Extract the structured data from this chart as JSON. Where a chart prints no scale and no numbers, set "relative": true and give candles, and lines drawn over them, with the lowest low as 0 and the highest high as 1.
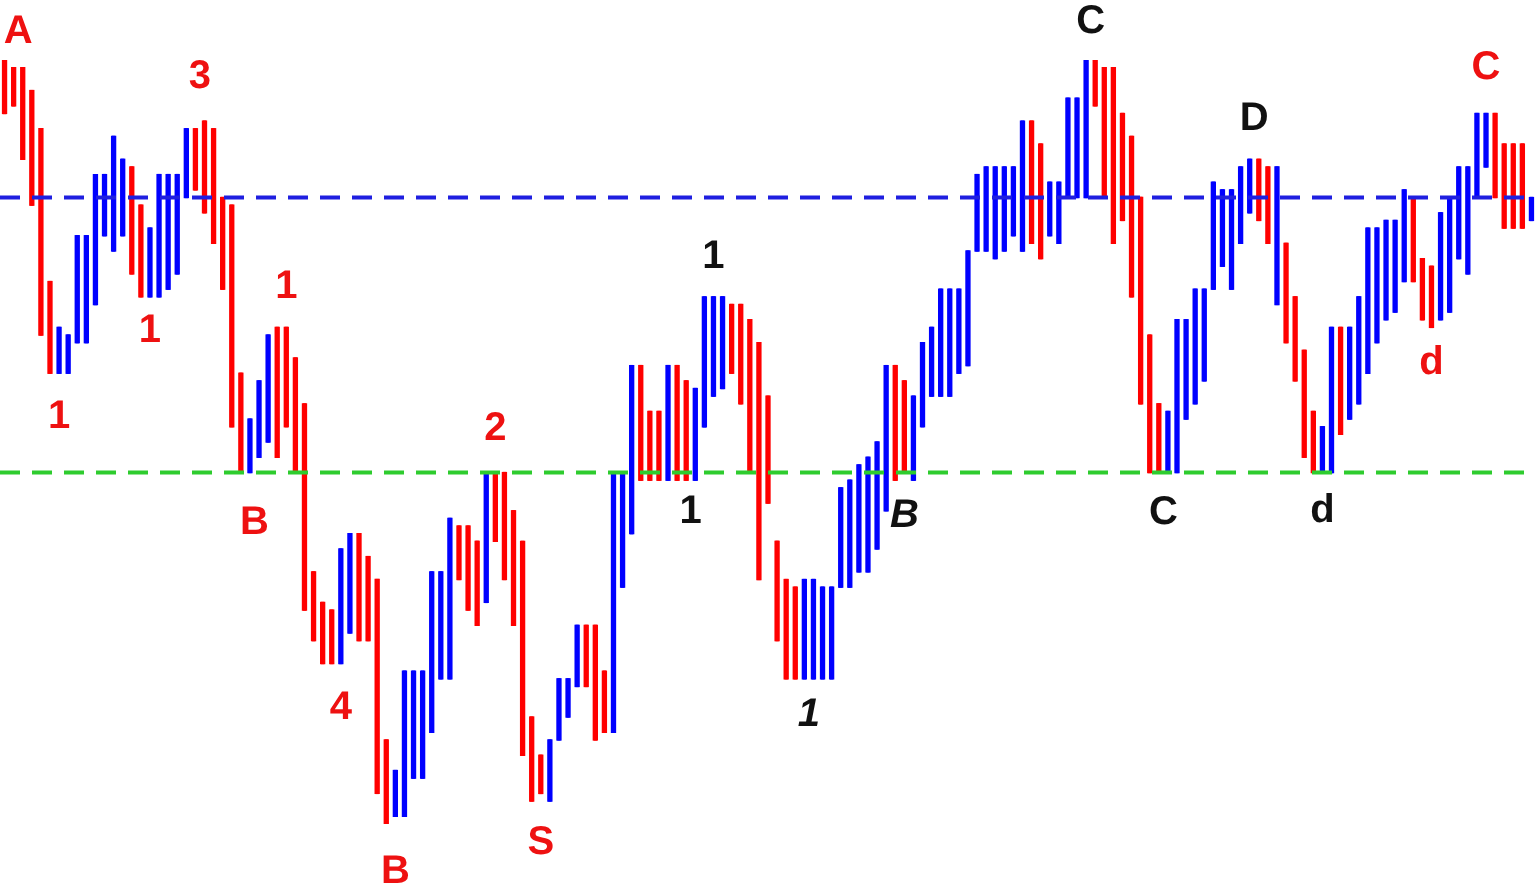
{
  "chart_data": {
    "type": "candlestick",
    "relative": true,
    "tick_labels": false,
    "categories": [
      null,
      null,
      null,
      null,
      null,
      null,
      null,
      null,
      null,
      null,
      null,
      null,
      null,
      null,
      null,
      null,
      null,
      null,
      null,
      null,
      null,
      null,
      null,
      null,
      null,
      null,
      null,
      null,
      null,
      null,
      null,
      null,
      null,
      null,
      null,
      null,
      null,
      null,
      null,
      null,
      null,
      null,
      null,
      null,
      null,
      null,
      null,
      null,
      null,
      null,
      null,
      null,
      null,
      null,
      null,
      null,
      null,
      null,
      null,
      null,
      null,
      null,
      null,
      null,
      null,
      null,
      null,
      null,
      null,
      null,
      null,
      null,
      null,
      null,
      null,
      null,
      null,
      null,
      null,
      null,
      null,
      null,
      null,
      null,
      null,
      null,
      null,
      null,
      null,
      null,
      null,
      null,
      null,
      null,
      null,
      null,
      null,
      null,
      null,
      null,
      null,
      null,
      null,
      null,
      null,
      null,
      null,
      null,
      null,
      null,
      null,
      null,
      null,
      null,
      null,
      null,
      null,
      null,
      null,
      null,
      null,
      null,
      null,
      null,
      null,
      null,
      null,
      null,
      null,
      null,
      null,
      null,
      null,
      null,
      null,
      null,
      null,
      null,
      null,
      null,
      null,
      null,
      null,
      null,
      null,
      null,
      null,
      null,
      null,
      null,
      null,
      null,
      null,
      null,
      null,
      null,
      null,
      null,
      null,
      null,
      null,
      null,
      null,
      null,
      null,
      null,
      null,
      null,
      null
    ],
    "ohlc": [
      [
        1,
        1,
        0.93,
        0.93
      ],
      [
        0.99,
        0.99,
        0.94,
        0.94
      ],
      [
        0.99,
        0.99,
        0.87,
        0.87
      ],
      [
        0.96,
        0.96,
        0.81,
        0.81
      ],
      [
        0.91,
        0.91,
        0.64,
        0.64
      ],
      [
        0.71,
        0.71,
        0.59,
        0.59
      ],
      [
        0.59,
        0.65,
        0.59,
        0.65
      ],
      [
        0.59,
        0.64,
        0.59,
        0.64
      ],
      [
        0.63,
        0.77,
        0.63,
        0.77
      ],
      [
        0.63,
        0.77,
        0.63,
        0.77
      ],
      [
        0.68,
        0.85,
        0.68,
        0.85
      ],
      [
        0.77,
        0.85,
        0.77,
        0.85
      ],
      [
        0.75,
        0.9,
        0.75,
        0.9
      ],
      [
        0.77,
        0.87,
        0.77,
        0.87
      ],
      [
        0.86,
        0.86,
        0.72,
        0.72
      ],
      [
        0.81,
        0.81,
        0.69,
        0.69
      ],
      [
        0.69,
        0.78,
        0.69,
        0.78
      ],
      [
        0.69,
        0.85,
        0.69,
        0.85
      ],
      [
        0.7,
        0.85,
        0.7,
        0.85
      ],
      [
        0.72,
        0.85,
        0.72,
        0.85
      ],
      [
        0.82,
        0.91,
        0.82,
        0.91
      ],
      [
        0.91,
        0.91,
        0.83,
        0.83
      ],
      [
        0.92,
        0.92,
        0.8,
        0.8
      ],
      [
        0.91,
        0.91,
        0.76,
        0.76
      ],
      [
        0.82,
        0.82,
        0.7,
        0.7
      ],
      [
        0.81,
        0.81,
        0.52,
        0.52
      ],
      [
        0.59,
        0.59,
        0.46,
        0.46
      ],
      [
        0.46,
        0.53,
        0.46,
        0.53
      ],
      [
        0.48,
        0.58,
        0.48,
        0.58
      ],
      [
        0.5,
        0.64,
        0.5,
        0.64
      ],
      [
        0.65,
        0.65,
        0.48,
        0.48
      ],
      [
        0.65,
        0.65,
        0.52,
        0.52
      ],
      [
        0.61,
        0.61,
        0.46,
        0.46
      ],
      [
        0.55,
        0.55,
        0.28,
        0.28
      ],
      [
        0.33,
        0.33,
        0.24,
        0.24
      ],
      [
        0.29,
        0.29,
        0.21,
        0.21
      ],
      [
        0.28,
        0.28,
        0.21,
        0.21
      ],
      [
        0.21,
        0.36,
        0.21,
        0.36
      ],
      [
        0.25,
        0.38,
        0.25,
        0.38
      ],
      [
        0.38,
        0.38,
        0.24,
        0.24
      ],
      [
        0.35,
        0.35,
        0.24,
        0.24
      ],
      [
        0.32,
        0.32,
        0.04,
        0.04
      ],
      [
        0.11,
        0.11,
        0,
        0
      ],
      [
        0.01,
        0.07,
        0.01,
        0.07
      ],
      [
        0.01,
        0.2,
        0.01,
        0.2
      ],
      [
        0.06,
        0.2,
        0.06,
        0.2
      ],
      [
        0.06,
        0.2,
        0.06,
        0.2
      ],
      [
        0.12,
        0.33,
        0.12,
        0.33
      ],
      [
        0.19,
        0.33,
        0.19,
        0.33
      ],
      [
        0.19,
        0.4,
        0.19,
        0.4
      ],
      [
        0.39,
        0.39,
        0.32,
        0.32
      ],
      [
        0.39,
        0.39,
        0.28,
        0.28
      ],
      [
        0.37,
        0.37,
        0.26,
        0.26
      ],
      [
        0.29,
        0.46,
        0.29,
        0.46
      ],
      [
        0.46,
        0.46,
        0.37,
        0.37
      ],
      [
        0.46,
        0.46,
        0.32,
        0.32
      ],
      [
        0.41,
        0.41,
        0.26,
        0.26
      ],
      [
        0.37,
        0.37,
        0.09,
        0.09
      ],
      [
        0.14,
        0.14,
        0.03,
        0.03
      ],
      [
        0.09,
        0.09,
        0.04,
        0.04
      ],
      [
        0.03,
        0.11,
        0.03,
        0.11
      ],
      [
        0.11,
        0.19,
        0.11,
        0.19
      ],
      [
        0.14,
        0.19,
        0.14,
        0.19
      ],
      [
        0.18,
        0.26,
        0.18,
        0.26
      ],
      [
        0.26,
        0.26,
        0.18,
        0.18
      ],
      [
        0.26,
        0.26,
        0.11,
        0.11
      ],
      [
        0.2,
        0.2,
        0.12,
        0.12
      ],
      [
        0.12,
        0.46,
        0.12,
        0.46
      ],
      [
        0.31,
        0.46,
        0.31,
        0.46
      ],
      [
        0.38,
        0.6,
        0.38,
        0.6
      ],
      [
        0.6,
        0.6,
        0.45,
        0.45
      ],
      [
        0.54,
        0.54,
        0.45,
        0.45
      ],
      [
        0.54,
        0.54,
        0.45,
        0.45
      ],
      [
        0.45,
        0.6,
        0.45,
        0.6
      ],
      [
        0.6,
        0.6,
        0.45,
        0.45
      ],
      [
        0.58,
        0.58,
        0.45,
        0.45
      ],
      [
        0.45,
        0.57,
        0.45,
        0.57
      ],
      [
        0.52,
        0.69,
        0.52,
        0.69
      ],
      [
        0.56,
        0.69,
        0.56,
        0.69
      ],
      [
        0.57,
        0.69,
        0.57,
        0.69
      ],
      [
        0.68,
        0.68,
        0.59,
        0.59
      ],
      [
        0.68,
        0.68,
        0.55,
        0.55
      ],
      [
        0.66,
        0.66,
        0.46,
        0.46
      ],
      [
        0.63,
        0.63,
        0.32,
        0.32
      ],
      [
        0.56,
        0.56,
        0.42,
        0.42
      ],
      [
        0.37,
        0.37,
        0.24,
        0.24
      ],
      [
        0.32,
        0.32,
        0.19,
        0.19
      ],
      [
        0.31,
        0.31,
        0.19,
        0.19
      ],
      [
        0.19,
        0.32,
        0.19,
        0.32
      ],
      [
        0.19,
        0.32,
        0.19,
        0.32
      ],
      [
        0.19,
        0.31,
        0.19,
        0.31
      ],
      [
        0.19,
        0.31,
        0.19,
        0.31
      ],
      [
        0.31,
        0.44,
        0.31,
        0.44
      ],
      [
        0.31,
        0.45,
        0.31,
        0.45
      ],
      [
        0.33,
        0.47,
        0.33,
        0.47
      ],
      [
        0.33,
        0.48,
        0.33,
        0.48
      ],
      [
        0.36,
        0.5,
        0.36,
        0.5
      ],
      [
        0.41,
        0.6,
        0.41,
        0.6
      ],
      [
        0.6,
        0.6,
        0.45,
        0.45
      ],
      [
        0.58,
        0.58,
        0.46,
        0.46
      ],
      [
        0.45,
        0.56,
        0.45,
        0.56
      ],
      [
        0.52,
        0.63,
        0.52,
        0.63
      ],
      [
        0.56,
        0.65,
        0.56,
        0.65
      ],
      [
        0.56,
        0.7,
        0.56,
        0.7
      ],
      [
        0.56,
        0.7,
        0.56,
        0.7
      ],
      [
        0.59,
        0.7,
        0.59,
        0.7
      ],
      [
        0.6,
        0.75,
        0.6,
        0.75
      ],
      [
        0.75,
        0.85,
        0.75,
        0.85
      ],
      [
        0.75,
        0.86,
        0.75,
        0.86
      ],
      [
        0.74,
        0.86,
        0.74,
        0.86
      ],
      [
        0.75,
        0.86,
        0.75,
        0.86
      ],
      [
        0.77,
        0.86,
        0.77,
        0.86
      ],
      [
        0.75,
        0.92,
        0.75,
        0.92
      ],
      [
        0.92,
        0.92,
        0.76,
        0.76
      ],
      [
        0.89,
        0.89,
        0.74,
        0.74
      ],
      [
        0.77,
        0.84,
        0.77,
        0.84
      ],
      [
        0.76,
        0.84,
        0.76,
        0.84
      ],
      [
        0.82,
        0.95,
        0.82,
        0.95
      ],
      [
        0.82,
        0.95,
        0.82,
        0.95
      ],
      [
        0.82,
        1,
        0.82,
        1
      ],
      [
        1,
        1,
        0.94,
        0.94
      ],
      [
        0.99,
        0.99,
        0.82,
        0.82
      ],
      [
        0.99,
        0.99,
        0.76,
        0.76
      ],
      [
        0.93,
        0.93,
        0.79,
        0.79
      ],
      [
        0.9,
        0.9,
        0.69,
        0.69
      ],
      [
        0.82,
        0.82,
        0.55,
        0.55
      ],
      [
        0.64,
        0.64,
        0.46,
        0.46
      ],
      [
        0.55,
        0.55,
        0.46,
        0.46
      ],
      [
        0.46,
        0.54,
        0.46,
        0.54
      ],
      [
        0.46,
        0.66,
        0.46,
        0.66
      ],
      [
        0.53,
        0.66,
        0.53,
        0.66
      ],
      [
        0.55,
        0.7,
        0.55,
        0.7
      ],
      [
        0.58,
        0.7,
        0.58,
        0.7
      ],
      [
        0.7,
        0.84,
        0.7,
        0.84
      ],
      [
        0.73,
        0.83,
        0.73,
        0.83
      ],
      [
        0.7,
        0.83,
        0.7,
        0.83
      ],
      [
        0.76,
        0.86,
        0.76,
        0.86
      ],
      [
        0.8,
        0.87,
        0.8,
        0.87
      ],
      [
        0.87,
        0.87,
        0.79,
        0.79
      ],
      [
        0.86,
        0.86,
        0.76,
        0.76
      ],
      [
        0.68,
        0.86,
        0.68,
        0.86
      ],
      [
        0.76,
        0.76,
        0.63,
        0.63
      ],
      [
        0.69,
        0.69,
        0.58,
        0.58
      ],
      [
        0.62,
        0.62,
        0.48,
        0.48
      ],
      [
        0.54,
        0.54,
        0.46,
        0.46
      ],
      [
        0.46,
        0.52,
        0.46,
        0.52
      ],
      [
        0.46,
        0.65,
        0.46,
        0.65
      ],
      [
        0.65,
        0.65,
        0.51,
        0.51
      ],
      [
        0.53,
        0.65,
        0.53,
        0.65
      ],
      [
        0.55,
        0.69,
        0.55,
        0.69
      ],
      [
        0.59,
        0.78,
        0.59,
        0.78
      ],
      [
        0.63,
        0.78,
        0.63,
        0.78
      ],
      [
        0.66,
        0.79,
        0.66,
        0.79
      ],
      [
        0.67,
        0.79,
        0.67,
        0.79
      ],
      [
        0.71,
        0.83,
        0.71,
        0.83
      ],
      [
        0.82,
        0.82,
        0.71,
        0.71
      ],
      [
        0.74,
        0.74,
        0.66,
        0.66
      ],
      [
        0.73,
        0.73,
        0.65,
        0.65
      ],
      [
        0.66,
        0.8,
        0.66,
        0.8
      ],
      [
        0.67,
        0.82,
        0.67,
        0.82
      ],
      [
        0.74,
        0.86,
        0.74,
        0.86
      ],
      [
        0.72,
        0.86,
        0.72,
        0.86
      ],
      [
        0.82,
        0.93,
        0.82,
        0.93
      ],
      [
        0.86,
        0.93,
        0.86,
        0.93
      ],
      [
        0.93,
        0.93,
        0.82,
        0.82
      ],
      [
        0.89,
        0.89,
        0.78,
        0.78
      ],
      [
        0.89,
        0.89,
        0.78,
        0.78
      ],
      [
        0.89,
        0.89,
        0.78,
        0.78
      ],
      [
        0.79,
        0.82,
        0.79,
        0.82
      ]
    ],
    "colors": [
      "#ff0000",
      "#ff0000",
      "#ff0000",
      "#ff0000",
      "#ff0000",
      "#ff0000",
      "#0000ff",
      "#0000ff",
      "#0000ff",
      "#0000ff",
      "#0000ff",
      "#0000ff",
      "#0000ff",
      "#0000ff",
      "#ff0000",
      "#ff0000",
      "#0000ff",
      "#0000ff",
      "#0000ff",
      "#0000ff",
      "#0000ff",
      "#ff0000",
      "#ff0000",
      "#ff0000",
      "#ff0000",
      "#ff0000",
      "#ff0000",
      "#0000ff",
      "#0000ff",
      "#0000ff",
      "#ff0000",
      "#ff0000",
      "#ff0000",
      "#ff0000",
      "#ff0000",
      "#ff0000",
      "#ff0000",
      "#0000ff",
      "#0000ff",
      "#ff0000",
      "#ff0000",
      "#ff0000",
      "#ff0000",
      "#0000ff",
      "#0000ff",
      "#0000ff",
      "#0000ff",
      "#0000ff",
      "#0000ff",
      "#0000ff",
      "#ff0000",
      "#ff0000",
      "#ff0000",
      "#0000ff",
      "#ff0000",
      "#ff0000",
      "#ff0000",
      "#ff0000",
      "#ff0000",
      "#ff0000",
      "#0000ff",
      "#0000ff",
      "#0000ff",
      "#0000ff",
      "#ff0000",
      "#ff0000",
      "#ff0000",
      "#0000ff",
      "#0000ff",
      "#0000ff",
      "#ff0000",
      "#ff0000",
      "#ff0000",
      "#0000ff",
      "#ff0000",
      "#ff0000",
      "#0000ff",
      "#0000ff",
      "#0000ff",
      "#0000ff",
      "#ff0000",
      "#ff0000",
      "#ff0000",
      "#ff0000",
      "#ff0000",
      "#ff0000",
      "#ff0000",
      "#ff0000",
      "#0000ff",
      "#0000ff",
      "#0000ff",
      "#0000ff",
      "#0000ff",
      "#0000ff",
      "#0000ff",
      "#0000ff",
      "#0000ff",
      "#0000ff",
      "#ff0000",
      "#ff0000",
      "#0000ff",
      "#0000ff",
      "#0000ff",
      "#0000ff",
      "#0000ff",
      "#0000ff",
      "#0000ff",
      "#0000ff",
      "#0000ff",
      "#0000ff",
      "#0000ff",
      "#0000ff",
      "#0000ff",
      "#ff0000",
      "#ff0000",
      "#0000ff",
      "#0000ff",
      "#0000ff",
      "#0000ff",
      "#0000ff",
      "#ff0000",
      "#ff0000",
      "#ff0000",
      "#ff0000",
      "#ff0000",
      "#ff0000",
      "#ff0000",
      "#ff0000",
      "#0000ff",
      "#0000ff",
      "#0000ff",
      "#0000ff",
      "#0000ff",
      "#0000ff",
      "#0000ff",
      "#0000ff",
      "#0000ff",
      "#0000ff",
      "#ff0000",
      "#ff0000",
      "#0000ff",
      "#ff0000",
      "#ff0000",
      "#ff0000",
      "#ff0000",
      "#0000ff",
      "#0000ff",
      "#ff0000",
      "#0000ff",
      "#0000ff",
      "#0000ff",
      "#0000ff",
      "#0000ff",
      "#0000ff",
      "#0000ff",
      "#ff0000",
      "#ff0000",
      "#ff0000",
      "#0000ff",
      "#0000ff",
      "#0000ff",
      "#0000ff",
      "#0000ff",
      "#0000ff",
      "#ff0000",
      "#ff0000",
      "#ff0000",
      "#ff0000",
      "#0000ff"
    ],
    "ref_lines": [
      {
        "axis": "y",
        "value": 0.82,
        "color": "#1f1fe0",
        "line_style": "dashed"
      },
      {
        "axis": "y",
        "value": 0.46,
        "color": "#2ecc2e",
        "line_style": "dashed"
      }
    ],
    "annotations": [
      "A",
      "1",
      "1",
      "3",
      "B",
      "1",
      "4",
      "B",
      "2",
      "S",
      "1",
      "1",
      "1",
      "B",
      "C",
      "C",
      "D",
      "d",
      "d",
      "C"
    ]
  }
}
